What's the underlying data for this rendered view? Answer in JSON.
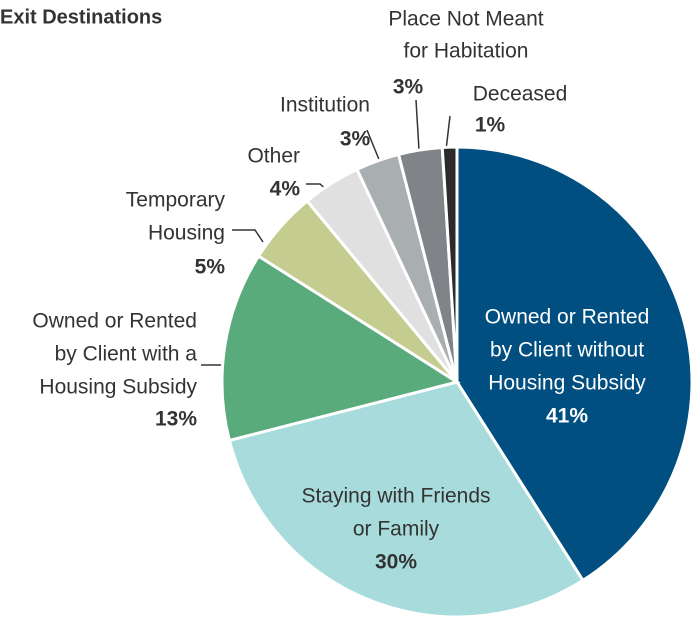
{
  "chart_data": {
    "type": "pie",
    "title": "Exit Destinations",
    "categories": [
      [
        "Owned or Rented",
        "by Client without",
        "Housing Subsidy"
      ],
      [
        "Staying with Friends",
        "or Family"
      ],
      [
        "Owned or Rented",
        "by Client with a",
        "Housing Subsidy"
      ],
      [
        "Temporary",
        "Housing"
      ],
      [
        "Other"
      ],
      [
        "Institution"
      ],
      [
        "Place Not Meant",
        "for Habitation"
      ],
      [
        "Deceased"
      ]
    ],
    "values": [
      41,
      30,
      13,
      5,
      4,
      3,
      3,
      1
    ],
    "value_labels": [
      "41%",
      "30%",
      "13%",
      "5%",
      "4%",
      "3%",
      "3%",
      "1%"
    ],
    "colors": [
      "#004f80",
      "#a8dcdc",
      "#5aab7c",
      "#c5cc8f",
      "#e0e0e0",
      "#a9aeb0",
      "#808488",
      "#2b2b2b"
    ]
  }
}
